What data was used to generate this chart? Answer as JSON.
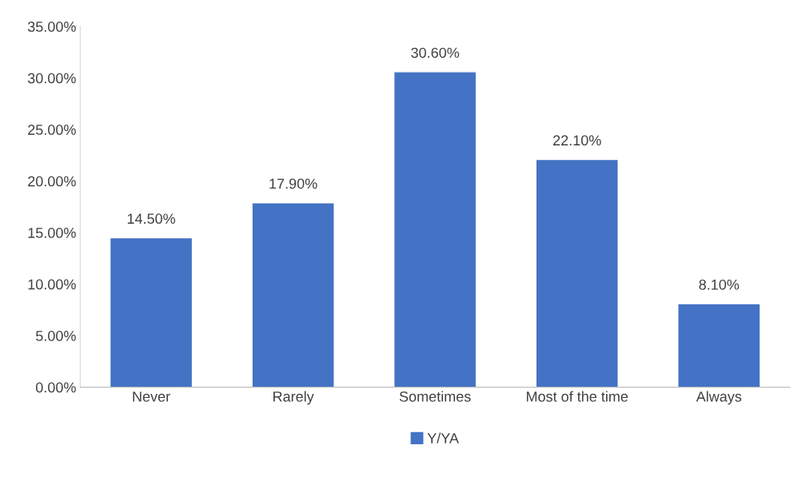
{
  "chart_data": {
    "type": "bar",
    "categories": [
      "Never",
      "Rarely",
      "Sometimes",
      "Most of the time",
      "Always"
    ],
    "series": [
      {
        "name": "Y/YA",
        "color": "#4472c4",
        "values": [
          14.5,
          17.9,
          30.6,
          22.1,
          8.1
        ],
        "value_labels": [
          "14.50%",
          "17.90%",
          "30.60%",
          "22.10%",
          "8.10%"
        ]
      }
    ],
    "ylim": [
      0,
      35
    ],
    "yticks": [
      {
        "value": 0,
        "label": "0.00%"
      },
      {
        "value": 5,
        "label": "5.00%"
      },
      {
        "value": 10,
        "label": "10.00%"
      },
      {
        "value": 15,
        "label": "15.00%"
      },
      {
        "value": 20,
        "label": "20.00%"
      },
      {
        "value": 25,
        "label": "25.00%"
      },
      {
        "value": 30,
        "label": "30.00%"
      },
      {
        "value": 35,
        "label": "35.00%"
      }
    ],
    "grid": false,
    "legend": "bottom"
  }
}
